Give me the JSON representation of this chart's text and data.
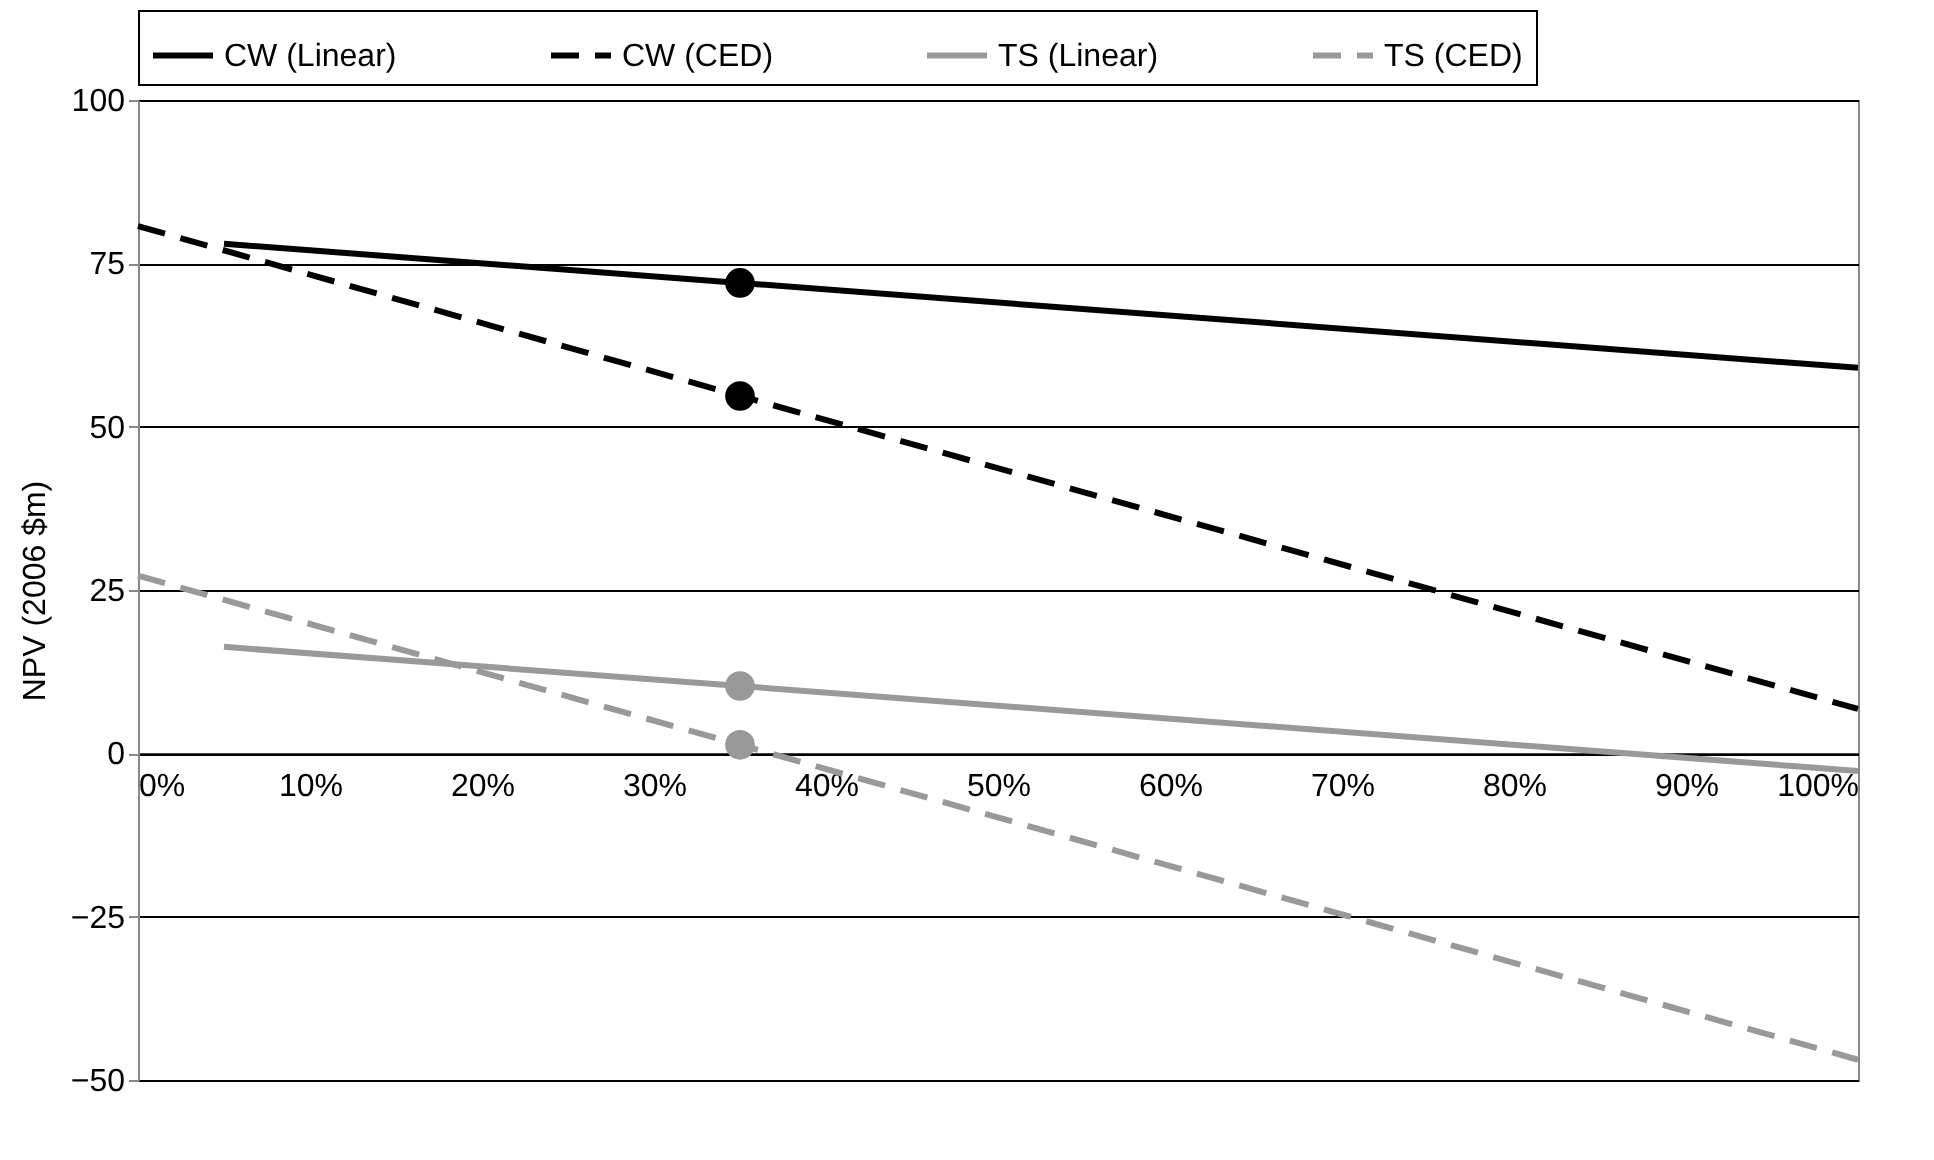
{
  "chart_data": {
    "type": "line",
    "ylabel": "NPV (2006 $m)",
    "xlim": [
      0,
      100
    ],
    "ylim": [
      -50,
      100
    ],
    "xticks": [
      {
        "value": 0,
        "label": "0%"
      },
      {
        "value": 10,
        "label": "10%"
      },
      {
        "value": 20,
        "label": "20%"
      },
      {
        "value": 30,
        "label": "30%"
      },
      {
        "value": 40,
        "label": "40%"
      },
      {
        "value": 50,
        "label": "50%"
      },
      {
        "value": 60,
        "label": "60%"
      },
      {
        "value": 70,
        "label": "70%"
      },
      {
        "value": 80,
        "label": "80%"
      },
      {
        "value": 90,
        "label": "90%"
      },
      {
        "value": 100,
        "label": "100%"
      }
    ],
    "yticks": [
      -50,
      -25,
      0,
      25,
      50,
      75,
      100
    ],
    "grid": "y",
    "legend": "top",
    "series": [
      {
        "name": "CW (Linear)",
        "color": "#000000",
        "line_style": "solid",
        "x": [
          5,
          35,
          100
        ],
        "values": [
          78,
          72,
          59
        ]
      },
      {
        "name": "CW (CED)",
        "color": "#000000",
        "line_style": "dashed",
        "x": [
          0,
          35,
          100
        ],
        "values": [
          80.7,
          54.7,
          6.8
        ]
      },
      {
        "name": "TS (Linear)",
        "color": "#999999",
        "line_style": "solid",
        "x": [
          5,
          35,
          100
        ],
        "values": [
          16.3,
          10.3,
          -2.7
        ]
      },
      {
        "name": "TS (CED)",
        "color": "#999999",
        "line_style": "dashed",
        "x": [
          0,
          35,
          100
        ],
        "values": [
          27.2,
          1.3,
          -46.9
        ]
      },
      {
        "type": "scatter",
        "color": "#000000",
        "marker": "circle",
        "x": [
          35,
          35
        ],
        "values": [
          72,
          54.7
        ]
      },
      {
        "type": "scatter",
        "color": "#999999",
        "marker": "circle",
        "x": [
          35,
          35
        ],
        "values": [
          10.3,
          1.3
        ]
      }
    ]
  }
}
